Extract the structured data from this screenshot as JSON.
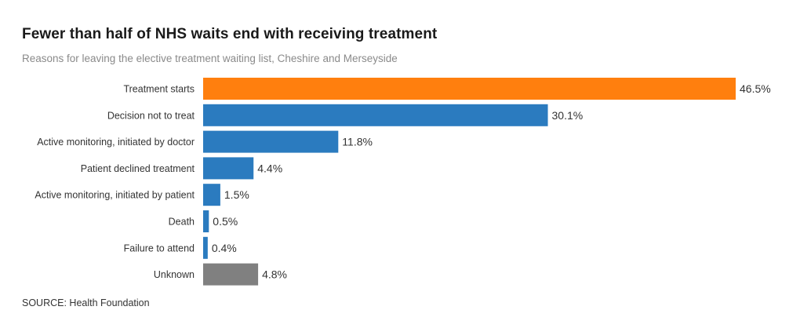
{
  "header": {
    "title": "Fewer than half of NHS waits end with receiving treatment",
    "subtitle": "Reasons for leaving the elective treatment waiting list, Cheshire and Merseyside"
  },
  "footer": {
    "source": "SOURCE: Health Foundation"
  },
  "colors": {
    "highlight": "#ff7f0e",
    "default": "#2b7bbf",
    "unknown": "#808080"
  },
  "chart_data": {
    "type": "bar",
    "orientation": "horizontal",
    "title": "Fewer than half of NHS waits end with receiving treatment",
    "subtitle": "Reasons for leaving the elective treatment waiting list, Cheshire and Merseyside",
    "categories": [
      "Treatment starts",
      "Decision not to treat",
      "Active monitoring, initiated by doctor",
      "Patient declined treatment",
      "Active monitoring, initiated by patient",
      "Death",
      "Failure to attend",
      "Unknown"
    ],
    "values": [
      46.5,
      30.1,
      11.8,
      4.4,
      1.5,
      0.5,
      0.4,
      4.8
    ],
    "value_labels": [
      "46.5%",
      "30.1%",
      "11.8%",
      "4.4%",
      "1.5%",
      "0.5%",
      "0.4%",
      "4.8%"
    ],
    "bar_colors": [
      "#ff7f0e",
      "#2b7bbf",
      "#2b7bbf",
      "#2b7bbf",
      "#2b7bbf",
      "#2b7bbf",
      "#2b7bbf",
      "#808080"
    ],
    "xlim": [
      0,
      46.5
    ],
    "unit": "%",
    "grid": false,
    "legend": "none"
  }
}
